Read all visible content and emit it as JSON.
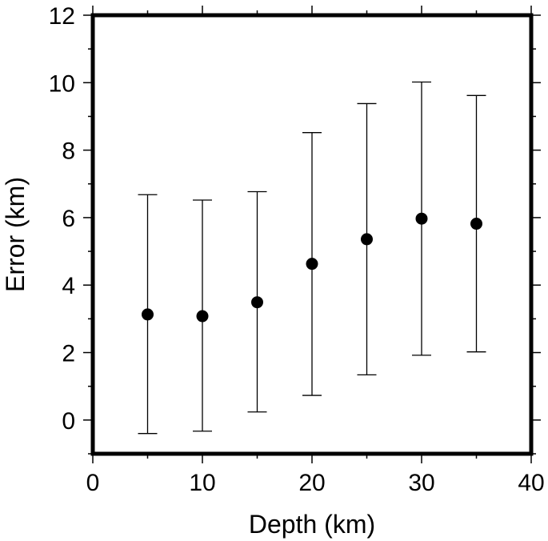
{
  "chart_data": {
    "type": "scatter",
    "title": "",
    "xlabel": "Depth (km)",
    "ylabel": "Error (km)",
    "xlim": [
      0,
      40
    ],
    "ylim": [
      -1,
      12
    ],
    "xticks": [
      0,
      10,
      20,
      30,
      40
    ],
    "yticks": [
      0,
      2,
      4,
      6,
      8,
      10,
      12
    ],
    "x_minor_step": 5,
    "y_minor_step": 1,
    "grid": false,
    "legend": "none",
    "series": [
      {
        "points": [
          {
            "x": 5,
            "y": 3.13,
            "ymin": -0.4,
            "ymax": 6.68
          },
          {
            "x": 10,
            "y": 3.08,
            "ymin": -0.33,
            "ymax": 6.52
          },
          {
            "x": 15,
            "y": 3.49,
            "ymin": 0.24,
            "ymax": 6.77
          },
          {
            "x": 20,
            "y": 4.63,
            "ymin": 0.73,
            "ymax": 8.52
          },
          {
            "x": 25,
            "y": 5.36,
            "ymin": 1.34,
            "ymax": 9.38
          },
          {
            "x": 30,
            "y": 5.97,
            "ymin": 1.92,
            "ymax": 10.02
          },
          {
            "x": 35,
            "y": 5.82,
            "ymin": 2.02,
            "ymax": 9.62
          }
        ]
      }
    ],
    "colors": {
      "marker": "#000000",
      "frame": "#000000",
      "errorbar": "#000000"
    }
  }
}
